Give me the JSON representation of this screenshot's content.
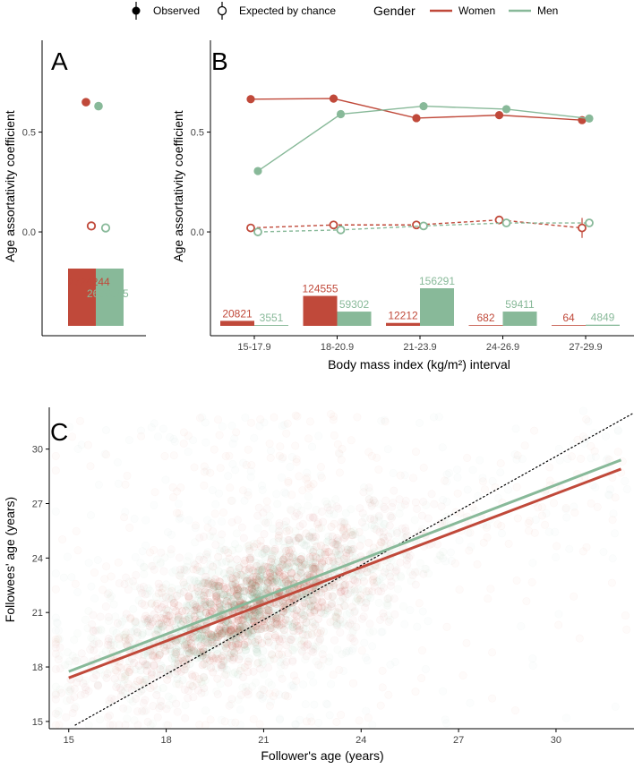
{
  "legend": {
    "observed_label": "Observed",
    "chance_label": "Expected by chance",
    "gender_title": "Gender",
    "women_label": "Women",
    "men_label": "Men"
  },
  "colors": {
    "women": "#c0493a",
    "men": "#88b999"
  },
  "chart_data": [
    {
      "panel": "A",
      "type": "scatter",
      "ylabel": "Age assortativity coefficient",
      "yticks": [
        0.0,
        0.5
      ],
      "ylim": [
        -0.52,
        0.96
      ],
      "observed": {
        "women": 0.65,
        "men": 0.63
      },
      "chance": {
        "women": 0.03,
        "men": 0.02
      },
      "counts": {
        "women": 2724244,
        "men": 2666095
      },
      "count_labels": {
        "women": "2724244",
        "men": "2666095"
      },
      "bars_relative": {
        "women": 0.1,
        "men": 0.1
      }
    },
    {
      "panel": "B",
      "type": "line",
      "xlabel": "Body mass index (kg/m²) interval",
      "ylabel": "Age assortativity coefficient",
      "categories": [
        "15-17.9",
        "18-20.9",
        "21-23.9",
        "24-26.9",
        "27-29.9"
      ],
      "yticks": [
        0.0,
        0.5
      ],
      "ylim": [
        -0.52,
        0.96
      ],
      "series": [
        {
          "name": "Women",
          "kind": "observed",
          "values": [
            0.665,
            0.668,
            0.57,
            0.585,
            0.56
          ]
        },
        {
          "name": "Men",
          "kind": "observed",
          "values": [
            0.305,
            0.59,
            0.63,
            0.615,
            0.568
          ]
        },
        {
          "name": "Women",
          "kind": "chance",
          "values": [
            0.02,
            0.035,
            0.035,
            0.06,
            0.02
          ],
          "error": [
            0,
            0,
            0,
            0.012,
            0.05
          ]
        },
        {
          "name": "Men",
          "kind": "chance",
          "values": [
            0.0,
            0.01,
            0.03,
            0.045,
            0.045
          ]
        }
      ],
      "counts": {
        "women": [
          20821,
          124555,
          12212,
          682,
          64
        ],
        "men": [
          3551,
          59302,
          156291,
          59411,
          4849
        ]
      },
      "count_labels": {
        "women": [
          "20821",
          "124555",
          "12212",
          "682",
          "64"
        ],
        "men": [
          "3551",
          "59302",
          "156291",
          "59411",
          "4849"
        ]
      }
    },
    {
      "panel": "C",
      "type": "scatter",
      "xlabel": "Follower's age (years)",
      "ylabel": "Followees' age (years)",
      "xticks": [
        15,
        18,
        21,
        24,
        27,
        30
      ],
      "yticks": [
        15,
        18,
        21,
        24,
        27,
        30
      ],
      "xlim": [
        14.4,
        32.4
      ],
      "ylim": [
        14.6,
        32.3
      ],
      "fits": [
        {
          "name": "Women",
          "x": [
            15,
            32
          ],
          "y": [
            17.4,
            28.9
          ]
        },
        {
          "name": "Men",
          "x": [
            15,
            32
          ],
          "y": [
            17.75,
            29.4
          ]
        }
      ],
      "identity_line": true
    }
  ]
}
